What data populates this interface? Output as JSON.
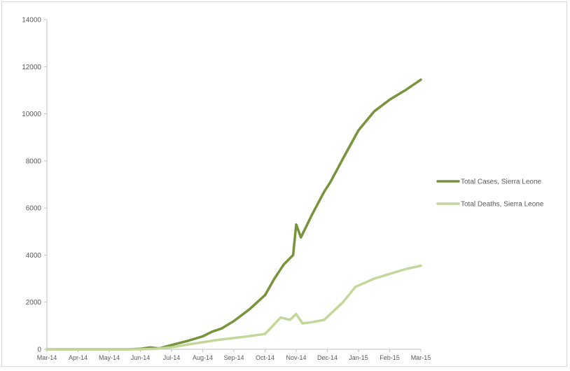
{
  "chart_data": {
    "type": "line",
    "title": "",
    "xlabel": "",
    "ylabel": "",
    "ylim": [
      0,
      14000
    ],
    "y_ticks": [
      0,
      2000,
      4000,
      6000,
      8000,
      10000,
      12000,
      14000
    ],
    "x_ticks": [
      "Mar-14",
      "Apr-14",
      "May-14",
      "Jun-14",
      "Jul-14",
      "Aug-14",
      "Sep-14",
      "Oct-14",
      "Nov-14",
      "Dec-14",
      "Jan-15",
      "Feb-15",
      "Mar-15"
    ],
    "grid": false,
    "legend_position": "right",
    "series": [
      {
        "name": "Total Cases, Sierra Leone",
        "color": "#77933c",
        "points": [
          [
            0,
            0
          ],
          [
            1,
            0
          ],
          [
            2,
            0
          ],
          [
            2.6,
            0
          ],
          [
            3,
            20
          ],
          [
            3.3,
            80
          ],
          [
            3.6,
            40
          ],
          [
            4,
            180
          ],
          [
            4.5,
            350
          ],
          [
            5,
            550
          ],
          [
            5.3,
            750
          ],
          [
            5.6,
            880
          ],
          [
            6,
            1200
          ],
          [
            6.5,
            1700
          ],
          [
            7,
            2300
          ],
          [
            7.3,
            3000
          ],
          [
            7.6,
            3600
          ],
          [
            7.9,
            4000
          ],
          [
            8,
            5300
          ],
          [
            8.15,
            4750
          ],
          [
            8.5,
            5700
          ],
          [
            8.9,
            6700
          ],
          [
            9.1,
            7100
          ],
          [
            9.5,
            8100
          ],
          [
            10,
            9300
          ],
          [
            10.5,
            10100
          ],
          [
            11,
            10600
          ],
          [
            11.5,
            11000
          ],
          [
            12,
            11450
          ]
        ]
      },
      {
        "name": "Total Deaths, Sierra Leone",
        "color": "#c4d79b",
        "points": [
          [
            0,
            0
          ],
          [
            1,
            0
          ],
          [
            2,
            0
          ],
          [
            3,
            0
          ],
          [
            3.5,
            20
          ],
          [
            4,
            80
          ],
          [
            4.5,
            200
          ],
          [
            5,
            300
          ],
          [
            5.5,
            400
          ],
          [
            6,
            480
          ],
          [
            6.5,
            560
          ],
          [
            7,
            650
          ],
          [
            7.5,
            1350
          ],
          [
            7.8,
            1250
          ],
          [
            8,
            1500
          ],
          [
            8.2,
            1100
          ],
          [
            8.5,
            1150
          ],
          [
            8.9,
            1250
          ],
          [
            9.1,
            1500
          ],
          [
            9.5,
            2000
          ],
          [
            9.9,
            2650
          ],
          [
            10.5,
            3000
          ],
          [
            11,
            3200
          ],
          [
            11.5,
            3400
          ],
          [
            12,
            3550
          ]
        ]
      }
    ]
  }
}
